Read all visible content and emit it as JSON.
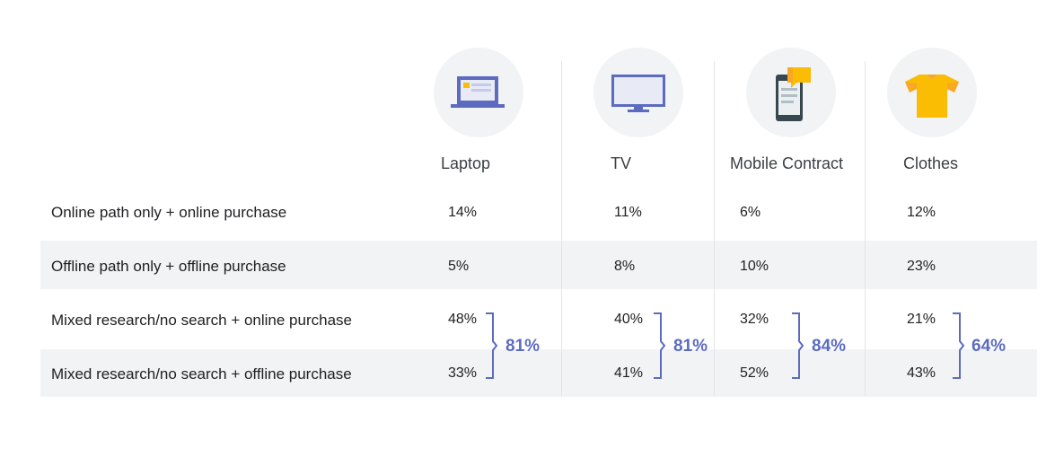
{
  "chart_data": {
    "type": "table",
    "columns": [
      "Laptop",
      "TV",
      "Mobile Contract",
      "Clothes"
    ],
    "rows": [
      {
        "label": "Online path only + online purchase",
        "values": [
          "14%",
          "11%",
          "6%",
          "12%"
        ]
      },
      {
        "label": "Offline path only + offline purchase",
        "values": [
          "5%",
          "8%",
          "10%",
          "23%"
        ]
      },
      {
        "label": "Mixed research/no search + online purchase",
        "values": [
          "48%",
          "40%",
          "32%",
          "21%"
        ]
      },
      {
        "label": "Mixed research/no search + offline purchase",
        "values": [
          "33%",
          "41%",
          "52%",
          "43%"
        ]
      }
    ],
    "mixed_totals": [
      "81%",
      "81%",
      "84%",
      "64%"
    ]
  },
  "icons": [
    "laptop-icon",
    "tv-icon",
    "mobile-contract-icon",
    "clothes-icon"
  ],
  "colors": {
    "accent": "#5c6bc0",
    "icon_circle": "#f1f3f4",
    "band": "#f1f3f4",
    "icon_yellow": "#fbbc04",
    "icon_orange": "#f9a825"
  }
}
